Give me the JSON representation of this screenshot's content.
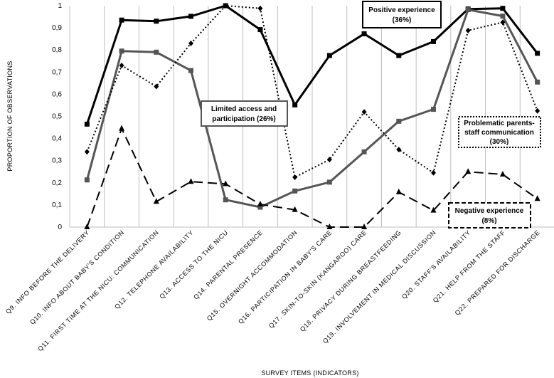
{
  "chart_data": {
    "type": "line",
    "xlabel": "SURVEY ITEMS (INDICATORS)",
    "ylabel": "PROPORTION OF OBSERVATIONS",
    "ylim": [
      0,
      1
    ],
    "yticks": [
      "0",
      "0,1",
      "0,2",
      "0,3",
      "0,4",
      "0,5",
      "0,6",
      "0,7",
      "0,8",
      "0,9",
      "1"
    ],
    "grid": "vertical",
    "legend": "none",
    "categories": [
      "Q9. INFO BEFORE THE DELIVERY",
      "Q10. INFO ABOUT BABY'S CONDITION",
      "Q11. FIRST TIME AT THE NICU: COMMUNICATION",
      "Q12. TELEPHONE AVAILABILITY",
      "Q13. ACCESS TO THE NICU",
      "Q14. PARENTAL PRESENCE",
      "Q15. OVERNIGHT ACCOMMODATION",
      "Q16. PARTICIPATION IN BABY'S CARE",
      "Q17. SKIN-TO-SKIN (KANGAROO) CARE",
      "Q18. PRIVACY DURING BREASTFEEDING",
      "Q19. INVOLVEMENT IN MEDICAL DISCUSSION",
      "Q20. STAFF'S AVAILABILITY",
      "Q21. HELP FROM THE STAFF",
      "Q22. PREPARED FOR DISCHARGE"
    ],
    "series": [
      {
        "style": "solid-thick",
        "color": "#000000",
        "marker": "square",
        "values": [
          0.465,
          0.935,
          0.93,
          0.952,
          1.0,
          0.892,
          0.552,
          0.775,
          0.873,
          0.775,
          0.838,
          0.985,
          0.988,
          0.785
        ]
      },
      {
        "style": "solid-gray",
        "color": "#555555",
        "marker": "square",
        "values": [
          0.213,
          0.795,
          0.79,
          0.707,
          0.123,
          0.09,
          0.163,
          0.203,
          0.34,
          0.478,
          0.532,
          0.982,
          0.953,
          0.655
        ]
      },
      {
        "style": "dotted",
        "color": "#000000",
        "marker": "diamond",
        "values": [
          0.34,
          0.73,
          0.635,
          0.83,
          1.0,
          0.988,
          0.225,
          0.305,
          0.52,
          0.35,
          0.245,
          0.888,
          0.925,
          0.525
        ]
      },
      {
        "style": "dashed",
        "color": "#000000",
        "marker": "triangle",
        "values": [
          0.0,
          0.445,
          0.115,
          0.205,
          0.195,
          0.103,
          0.078,
          0.0,
          0.0,
          0.158,
          0.075,
          0.25,
          0.238,
          0.128
        ]
      }
    ],
    "annotations": [
      {
        "line1": "Positive experience",
        "line2": "(36%)",
        "border": "solid"
      },
      {
        "line1": "Limited access and",
        "line2": "participation (26%)",
        "border": "gray"
      },
      {
        "line1": "Problematic parents-",
        "line2": "staff communication",
        "line3": "(30%)",
        "border": "dotted"
      },
      {
        "line1": "Negative experience",
        "line2": "(8%)",
        "border": "dashed"
      }
    ]
  }
}
